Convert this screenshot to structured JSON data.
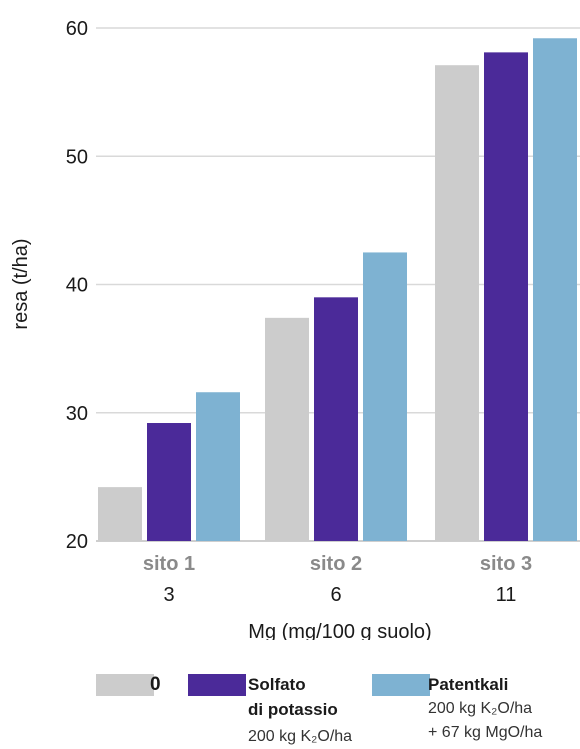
{
  "chart_data": {
    "type": "bar",
    "ylabel": "resa (t/ha)",
    "xlabel": "Mg (mg/100 g suolo)",
    "ylim": [
      20,
      60
    ],
    "yticks": [
      20,
      30,
      40,
      50,
      60
    ],
    "grid": true,
    "categories": [
      {
        "name": "sito 1",
        "mg": "3"
      },
      {
        "name": "sito 2",
        "mg": "6"
      },
      {
        "name": "sito 3",
        "mg": "11"
      }
    ],
    "series": [
      {
        "name": "0",
        "color": "#cccccc",
        "values": [
          24.2,
          37.4,
          57.1
        ]
      },
      {
        "name": "Solfato di potassio",
        "color": "#4b2a99",
        "values": [
          29.2,
          39.0,
          58.1
        ]
      },
      {
        "name": "Patentkali",
        "color": "#7eb2d2",
        "values": [
          31.6,
          42.5,
          59.2
        ]
      }
    ]
  },
  "legend": {
    "items": [
      {
        "title_lines": [
          "0"
        ],
        "sub_lines": []
      },
      {
        "title_lines": [
          "Solfato",
          "di potassio"
        ],
        "sub_lines": [
          "200 kg K₂O/ha"
        ]
      },
      {
        "title_lines": [
          "Patentkali"
        ],
        "sub_lines": [
          "200 kg K₂O/ha",
          "+ 67 kg MgO/ha"
        ]
      }
    ]
  }
}
